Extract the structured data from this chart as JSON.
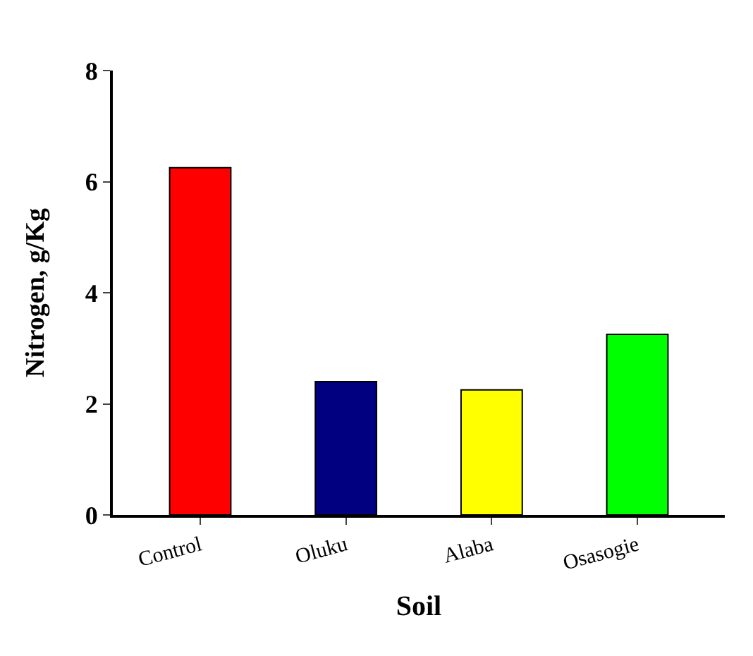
{
  "chart_data": {
    "type": "bar",
    "xlabel": "Soil",
    "ylabel": "Nitrogen, g/Kg",
    "categories": [
      "Control",
      "Oluku",
      "Alaba",
      "Osasogie"
    ],
    "values": [
      6.25,
      2.4,
      2.25,
      3.25
    ],
    "colors": [
      "#ff0000",
      "#000080",
      "#ffff00",
      "#00ff00"
    ],
    "ylim": [
      0,
      8
    ],
    "yticks": [
      0,
      2,
      4,
      6,
      8
    ],
    "grid": false
  }
}
